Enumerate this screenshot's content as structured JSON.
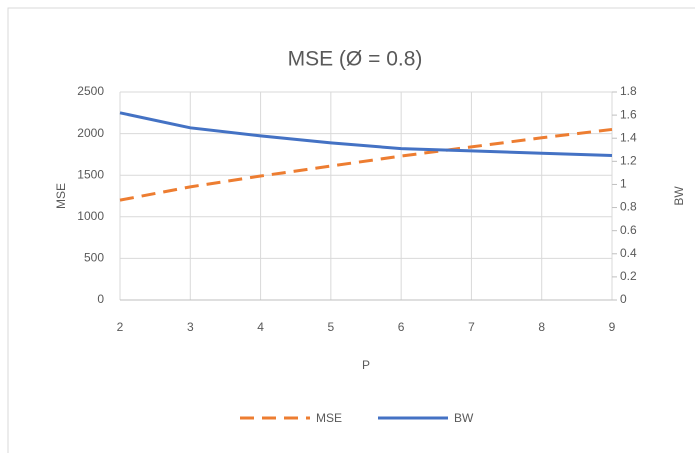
{
  "chart_data": {
    "type": "line",
    "title": "MSE (Ø = 0.8)",
    "x_label": "P",
    "y_label": "MSE",
    "y2_label": "BW",
    "x": [
      2,
      3,
      4,
      5,
      6,
      7,
      8,
      9
    ],
    "series": [
      {
        "name": "MSE",
        "color": "#ed7d31",
        "dashed": true,
        "values": [
          1200,
          1360,
          1490,
          1610,
          1730,
          1840,
          1950,
          2050
        ]
      },
      {
        "name": "BW",
        "color": "#4472c4",
        "axis": "y2",
        "values": [
          1.62,
          1.49,
          1.42,
          1.36,
          1.31,
          1.29,
          1.27,
          1.25
        ]
      }
    ],
    "xlim": [
      2,
      9
    ],
    "xticks": [
      2,
      3,
      4,
      5,
      6,
      7,
      8,
      9
    ],
    "ylim": [
      0,
      2500
    ],
    "yticks": [
      0,
      500,
      1000,
      1500,
      2000,
      2500
    ],
    "y2lim": [
      0,
      1.8
    ],
    "y2ticks": [
      0,
      0.2,
      0.4,
      0.6,
      0.8,
      1,
      1.2,
      1.4,
      1.6,
      1.8
    ],
    "grid": true,
    "legend": "bottom"
  }
}
